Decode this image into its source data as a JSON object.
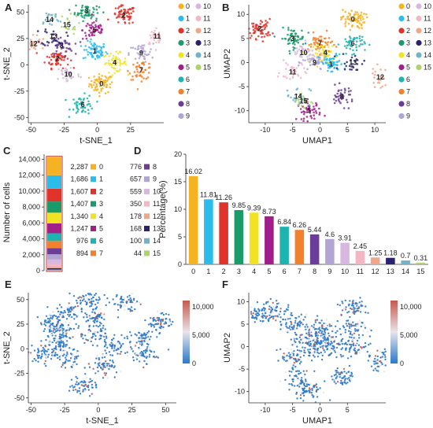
{
  "panels": {
    "a": {
      "label": "A"
    },
    "b": {
      "label": "B"
    },
    "c": {
      "label": "C"
    },
    "d": {
      "label": "D"
    },
    "e": {
      "label": "E"
    },
    "f": {
      "label": "F"
    }
  },
  "colors": [
    "#f5b323",
    "#2bbcec",
    "#e0332b",
    "#1b9a6a",
    "#f2e322",
    "#a21f8a",
    "#1db3b0",
    "#f1812c",
    "#6b3d99",
    "#b1a5d3",
    "#d7b8df",
    "#f4b6c5",
    "#f1a68a",
    "#2a2271",
    "#6fb4c9",
    "#aed36b"
  ],
  "clusters": [
    "0",
    "1",
    "2",
    "3",
    "4",
    "5",
    "6",
    "7",
    "8",
    "9",
    "10",
    "11",
    "12",
    "13",
    "14",
    "15"
  ],
  "chart_data": [
    {
      "type": "scatter",
      "panel": "A",
      "xlabel": "t-SNE_1",
      "ylabel": "t-SNE_2",
      "xticks": [
        "-50",
        "-25",
        "0",
        "25"
      ],
      "yticks": [
        "50",
        "25",
        "0",
        "-25",
        "-50"
      ],
      "xlim": [
        -52,
        50
      ],
      "ylim": [
        -55,
        57
      ],
      "legend": [
        "0",
        "1",
        "2",
        "3",
        "4",
        "5",
        "6",
        "7",
        "8",
        "9",
        "10",
        "11",
        "12",
        "13",
        "14",
        "15"
      ],
      "cluster_labels": [
        {
          "id": "0",
          "x": 3,
          "y": -18
        },
        {
          "id": "1",
          "x": -2,
          "y": 13
        },
        {
          "id": "2",
          "x": -30,
          "y": 6
        },
        {
          "id": "3",
          "x": -8,
          "y": 51
        },
        {
          "id": "4",
          "x": 13,
          "y": 2
        },
        {
          "id": "5",
          "x": -2,
          "y": 33
        },
        {
          "id": "2",
          "x": 20,
          "y": 47
        },
        {
          "id": "6",
          "x": -11,
          "y": -38
        },
        {
          "id": "7",
          "x": 33,
          "y": -5
        },
        {
          "id": "8",
          "x": -27,
          "y": 18
        },
        {
          "id": "9",
          "x": 33,
          "y": 11
        },
        {
          "id": "10",
          "x": -22,
          "y": -9
        },
        {
          "id": "11",
          "x": 45,
          "y": 27
        },
        {
          "id": "12",
          "x": -48,
          "y": 20
        },
        {
          "id": "13",
          "x": -33,
          "y": 27
        },
        {
          "id": "14",
          "x": -36,
          "y": 43
        },
        {
          "id": "15",
          "x": -23,
          "y": 38
        }
      ]
    },
    {
      "type": "scatter",
      "panel": "B",
      "xlabel": "UMAP1",
      "ylabel": "UMAP2",
      "xticks": [
        "-10",
        "-5",
        "0",
        "5",
        "10"
      ],
      "yticks": [
        "10",
        "5",
        "0",
        "-5",
        "-10"
      ],
      "xlim": [
        -13,
        12
      ],
      "ylim": [
        -12.5,
        12
      ],
      "legend": [
        "0",
        "1",
        "2",
        "3",
        "4",
        "5",
        "6",
        "7",
        "8",
        "9",
        "10",
        "11",
        "12",
        "13",
        "14",
        "15"
      ],
      "cluster_labels": [
        {
          "id": "0",
          "x": 6,
          "y": 9
        },
        {
          "id": "1",
          "x": 2,
          "y": -0.3
        },
        {
          "id": "2",
          "x": -11,
          "y": 7
        },
        {
          "id": "3",
          "x": -5,
          "y": 5
        },
        {
          "id": "4",
          "x": 1,
          "y": 2
        },
        {
          "id": "5",
          "x": -2,
          "y": -10
        },
        {
          "id": "6",
          "x": 6,
          "y": 4
        },
        {
          "id": "7",
          "x": 0,
          "y": 4
        },
        {
          "id": "8",
          "x": 4,
          "y": -7
        },
        {
          "id": "9",
          "x": -1,
          "y": 0
        },
        {
          "id": "10",
          "x": -3,
          "y": 2
        },
        {
          "id": "11",
          "x": -5,
          "y": -2
        },
        {
          "id": "12",
          "x": 11,
          "y": -3
        },
        {
          "id": "13",
          "x": 6,
          "y": 0
        },
        {
          "id": "14",
          "x": -4,
          "y": -7
        },
        {
          "id": "15",
          "x": -3,
          "y": -8
        }
      ]
    },
    {
      "type": "bar",
      "panel": "C",
      "stacked": true,
      "ylabel": "Number of cells",
      "ylim": [
        0,
        14644
      ],
      "yticks": [
        "14,000",
        "12,000",
        "10,000",
        "8,000",
        "6,000",
        "4,000",
        "2,000",
        "0"
      ],
      "counts": [
        "2,287",
        "1,686",
        "1,607",
        "1,407",
        "1,340",
        "1,247",
        "976",
        "894",
        "776",
        "657",
        "559",
        "350",
        "178",
        "168",
        "100",
        "44"
      ],
      "values": [
        2287,
        1686,
        1607,
        1407,
        1340,
        1247,
        976,
        894,
        776,
        657,
        559,
        350,
        178,
        168,
        100,
        44
      ],
      "categories": [
        "0",
        "1",
        "2",
        "3",
        "4",
        "5",
        "6",
        "7",
        "8",
        "9",
        "10",
        "11",
        "12",
        "13",
        "14",
        "15"
      ]
    },
    {
      "type": "bar",
      "panel": "D",
      "ylabel": "Percentage(%)",
      "ylim": [
        0,
        20
      ],
      "yticks": [
        "20",
        "15",
        "10",
        "5",
        "0"
      ],
      "categories": [
        "0",
        "1",
        "2",
        "3",
        "4",
        "5",
        "6",
        "7",
        "8",
        "9",
        "10",
        "11",
        "12",
        "13",
        "14",
        "15"
      ],
      "values": [
        16.02,
        11.81,
        11.26,
        9.85,
        9.39,
        8.73,
        6.84,
        6.26,
        5.44,
        4.6,
        3.91,
        2.45,
        1.25,
        1.18,
        0.7,
        0.31
      ],
      "value_labels": [
        "16.02",
        "11.81",
        "11.26",
        "9.85",
        "9.39",
        "8.73",
        "6.84",
        "6.26",
        "5.44",
        "4.6",
        "3.91",
        "2.45",
        "1.25",
        "1.18",
        "0.7",
        "0.31"
      ]
    },
    {
      "type": "scatter",
      "panel": "E",
      "xlabel": "t-SNE_1",
      "ylabel": "t-SNE_2",
      "xticks": [
        "-50",
        "-25",
        "0",
        "25",
        "50"
      ],
      "yticks": [
        "50",
        "25",
        "0",
        "-25",
        "-50"
      ],
      "xlim": [
        -52,
        58
      ],
      "ylim": [
        -55,
        57
      ],
      "colorbar": {
        "ticks": [
          "10,000",
          "5,000",
          "0"
        ],
        "low": "#2b78c8",
        "mid": "#e8e4ea",
        "high": "#c45a4c"
      }
    },
    {
      "type": "scatter",
      "panel": "F",
      "xlabel": "UMAP1",
      "ylabel": "UMAP2",
      "xticks": [
        "-10",
        "-5",
        "0",
        "5"
      ],
      "yticks": [
        "10",
        "5",
        "0",
        "-5",
        "-10"
      ],
      "xlim": [
        -13,
        12
      ],
      "ylim": [
        -12.5,
        12
      ],
      "colorbar": {
        "ticks": [
          "10,000",
          "5,000",
          "0"
        ],
        "low": "#2b78c8",
        "mid": "#e8e4ea",
        "high": "#c45a4c"
      }
    }
  ]
}
